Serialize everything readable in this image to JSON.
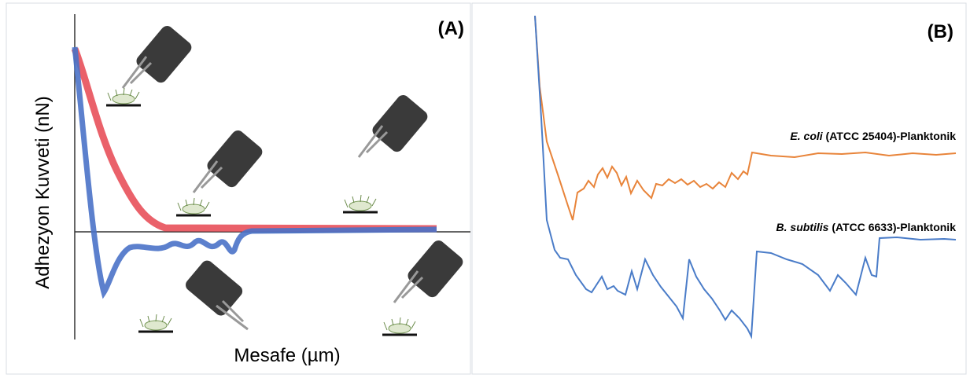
{
  "panels": [
    {
      "label": "(A)",
      "y_axis_label": "Adhezyon Kuvveti  (nN)",
      "x_axis_label": "Mesafe (µm)"
    },
    {
      "label": "(B)",
      "curves": [
        {
          "species": "E. coli",
          "strain": "(ATCC 25404)-Planktonik"
        },
        {
          "species": "B. subtilis",
          "strain": "(ATCC 6633)-Planktonik"
        }
      ]
    }
  ]
}
